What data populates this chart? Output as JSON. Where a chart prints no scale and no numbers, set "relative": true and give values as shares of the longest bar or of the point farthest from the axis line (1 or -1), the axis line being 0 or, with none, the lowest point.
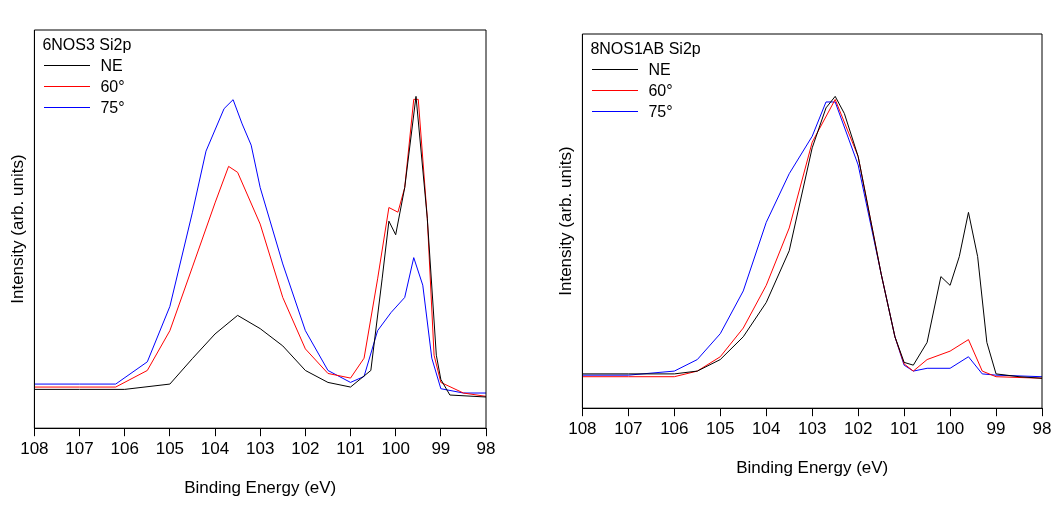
{
  "chart_data": [
    {
      "type": "line",
      "legend_title": "6NOS3 Si2p",
      "xlabel": "Binding Energy (eV)",
      "ylabel": "Intensity (arb. units)",
      "relative": true,
      "xlim": [
        108,
        98
      ],
      "xticks": [
        108,
        107,
        106,
        105,
        104,
        103,
        102,
        101,
        100,
        99,
        98
      ],
      "legend": "top left",
      "grid": false,
      "marker": "none",
      "line_style": "solid",
      "series": [
        {
          "name": "NE",
          "color": "#000000",
          "x": [
            108,
            107,
            106,
            105,
            104.5,
            104,
            103.5,
            103,
            102.5,
            102,
            101.5,
            101,
            100.55,
            100.3,
            100.15,
            100,
            99.8,
            99.55,
            99.3,
            99.1,
            99,
            98.8,
            98
          ],
          "values": [
            0.117,
            0.117,
            0.117,
            0.133,
            0.21,
            0.284,
            0.34,
            0.3,
            0.248,
            0.174,
            0.138,
            0.124,
            0.174,
            0.45,
            0.624,
            0.583,
            0.725,
            1,
            0.633,
            0.22,
            0.147,
            0.1,
            0.094
          ]
        },
        {
          "name": "60°",
          "color": "#ff0000",
          "x": [
            108,
            107,
            106.2,
            105.5,
            105,
            104.5,
            104,
            103.7,
            103.5,
            103,
            102.5,
            102,
            101.5,
            101,
            100.7,
            100.4,
            100.15,
            99.95,
            99.8,
            99.6,
            99.5,
            99.3,
            99.15,
            99,
            98.5,
            98
          ],
          "values": [
            0.124,
            0.124,
            0.124,
            0.174,
            0.294,
            0.486,
            0.679,
            0.789,
            0.771,
            0.615,
            0.394,
            0.239,
            0.165,
            0.151,
            0.211,
            0.45,
            0.665,
            0.651,
            0.725,
            0.991,
            0.991,
            0.633,
            0.22,
            0.138,
            0.106,
            0.096
          ]
        },
        {
          "name": "75°",
          "color": "#0000ff",
          "x": [
            108,
            107,
            106.2,
            105.5,
            105,
            104.5,
            104.2,
            103.8,
            103.6,
            103.4,
            103.2,
            103,
            102.5,
            102,
            101.5,
            101,
            100.7,
            100.4,
            100.1,
            99.8,
            99.6,
            99.4,
            99.2,
            99,
            98.5,
            98
          ],
          "values": [
            0.133,
            0.133,
            0.133,
            0.2,
            0.367,
            0.651,
            0.835,
            0.963,
            0.99,
            0.917,
            0.853,
            0.725,
            0.495,
            0.294,
            0.174,
            0.138,
            0.156,
            0.294,
            0.349,
            0.394,
            0.514,
            0.431,
            0.211,
            0.119,
            0.106,
            0.106
          ]
        }
      ]
    },
    {
      "type": "line",
      "legend_title": "8NOS1AB Si2p",
      "xlabel": "Binding Energy (eV)",
      "ylabel": "Intensity (arb. units)",
      "relative": true,
      "xlim": [
        108,
        98
      ],
      "xticks": [
        108,
        107,
        106,
        105,
        104,
        103,
        102,
        101,
        100,
        99,
        98
      ],
      "legend": "top left",
      "grid": false,
      "marker": "none",
      "line_style": "solid",
      "series": [
        {
          "name": "NE",
          "color": "#000000",
          "x": [
            108,
            107,
            106,
            105.5,
            105,
            104.5,
            104,
            103.5,
            103,
            102.7,
            102.5,
            102.3,
            102,
            101.5,
            101.2,
            101,
            100.8,
            100.5,
            100.2,
            100,
            99.8,
            99.6,
            99.4,
            99.2,
            99,
            98.5,
            98
          ],
          "values": [
            0.11,
            0.11,
            0.11,
            0.119,
            0.156,
            0.229,
            0.339,
            0.505,
            0.835,
            0.963,
            1,
            0.945,
            0.807,
            0.431,
            0.229,
            0.147,
            0.138,
            0.211,
            0.422,
            0.394,
            0.486,
            0.628,
            0.486,
            0.211,
            0.11,
            0.101,
            0.096
          ]
        },
        {
          "name": "60°",
          "color": "#ff0000",
          "x": [
            108,
            107,
            106,
            105.5,
            105,
            104.5,
            104,
            103.5,
            103,
            102.5,
            102,
            101.5,
            101.2,
            101,
            100.8,
            100.5,
            100,
            99.6,
            99.3,
            99,
            98
          ],
          "values": [
            0.101,
            0.101,
            0.101,
            0.119,
            0.165,
            0.257,
            0.394,
            0.578,
            0.853,
            0.99,
            0.807,
            0.431,
            0.229,
            0.142,
            0.119,
            0.156,
            0.183,
            0.22,
            0.119,
            0.101,
            0.096
          ]
        },
        {
          "name": "75°",
          "color": "#0000ff",
          "x": [
            108,
            107,
            106,
            105.5,
            105,
            104.5,
            104,
            103.5,
            103,
            102.7,
            102.5,
            102,
            101.5,
            101.2,
            101,
            100.8,
            100.5,
            100,
            99.6,
            99.3,
            99,
            98
          ],
          "values": [
            0.106,
            0.106,
            0.119,
            0.156,
            0.239,
            0.376,
            0.596,
            0.752,
            0.872,
            0.982,
            0.982,
            0.78,
            0.431,
            0.229,
            0.138,
            0.119,
            0.128,
            0.128,
            0.165,
            0.11,
            0.106,
            0.101
          ]
        }
      ]
    }
  ]
}
